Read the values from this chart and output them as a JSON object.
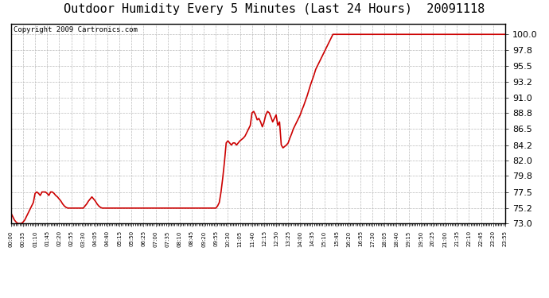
{
  "title": "Outdoor Humidity Every 5 Minutes (Last 24 Hours)  20091118",
  "copyright": "Copyright 2009 Cartronics.com",
  "line_color": "#cc0000",
  "background_color": "#ffffff",
  "grid_color": "#bbbbbb",
  "ylim": [
    73.0,
    101.5
  ],
  "yticks": [
    73.0,
    75.2,
    77.5,
    79.8,
    82.0,
    84.2,
    86.5,
    88.8,
    91.0,
    93.2,
    95.5,
    97.8,
    100.0
  ],
  "humidity_data": [
    74.5,
    74.0,
    73.5,
    73.2,
    73.0,
    73.0,
    73.0,
    73.2,
    73.5,
    74.0,
    74.5,
    75.0,
    75.5,
    76.0,
    77.3,
    77.5,
    77.3,
    77.0,
    77.5,
    77.5,
    77.5,
    77.3,
    77.0,
    77.5,
    77.5,
    77.3,
    77.0,
    76.8,
    76.5,
    76.2,
    75.8,
    75.5,
    75.3,
    75.2,
    75.2,
    75.2,
    75.2,
    75.2,
    75.2,
    75.2,
    75.2,
    75.2,
    75.2,
    75.5,
    75.8,
    76.2,
    76.5,
    76.8,
    76.5,
    76.2,
    75.8,
    75.5,
    75.3,
    75.2,
    75.2,
    75.2,
    75.2,
    75.2,
    75.2,
    75.2,
    75.2,
    75.2,
    75.2,
    75.2,
    75.2,
    75.2,
    75.2,
    75.2,
    75.2,
    75.2,
    75.2,
    75.2,
    75.2,
    75.2,
    75.2,
    75.2,
    75.2,
    75.2,
    75.2,
    75.2,
    75.2,
    75.2,
    75.2,
    75.2,
    75.2,
    75.2,
    75.2,
    75.2,
    75.2,
    75.2,
    75.2,
    75.2,
    75.2,
    75.2,
    75.2,
    75.2,
    75.2,
    75.2,
    75.2,
    75.2,
    75.2,
    75.2,
    75.2,
    75.2,
    75.2,
    75.2,
    75.2,
    75.2,
    75.2,
    75.2,
    75.2,
    75.2,
    75.2,
    75.2,
    75.2,
    75.2,
    75.2,
    75.2,
    75.2,
    75.2,
    75.5,
    76.0,
    77.5,
    79.5,
    81.8,
    84.5,
    84.8,
    84.5,
    84.2,
    84.5,
    84.5,
    84.2,
    84.5,
    84.8,
    85.0,
    85.2,
    85.5,
    86.0,
    86.5,
    87.0,
    88.8,
    89.0,
    88.5,
    87.8,
    88.0,
    87.5,
    86.8,
    87.5,
    88.5,
    89.0,
    88.8,
    88.2,
    87.5,
    88.0,
    88.5,
    87.0,
    87.5,
    84.2,
    83.8,
    84.0,
    84.2,
    84.5,
    85.2,
    85.8,
    86.5,
    87.0,
    87.5,
    88.0,
    88.5,
    89.2,
    89.8,
    90.5,
    91.2,
    92.0,
    92.8,
    93.5,
    94.2,
    95.0,
    95.5,
    96.0,
    96.5,
    97.0,
    97.5,
    98.0,
    98.5,
    99.0,
    99.5,
    100.0,
    100.0,
    100.0,
    100.0,
    100.0,
    100.0,
    100.0,
    100.0,
    100.0,
    100.0,
    100.0,
    100.0,
    100.0,
    100.0,
    100.0,
    100.0,
    100.0,
    100.0,
    100.0,
    100.0,
    100.0,
    100.0,
    100.0,
    100.0,
    100.0,
    100.0,
    100.0,
    100.0,
    100.0,
    100.0,
    100.0,
    100.0,
    100.0,
    100.0,
    100.0,
    100.0,
    100.0,
    100.0,
    100.0,
    100.0,
    100.0,
    100.0,
    100.0,
    100.0,
    100.0,
    100.0,
    100.0,
    100.0,
    100.0,
    100.0,
    100.0,
    100.0,
    100.0,
    100.0,
    100.0,
    100.0,
    100.0,
    100.0,
    100.0,
    100.0,
    100.0,
    100.0,
    100.0,
    100.0,
    100.0,
    100.0,
    100.0,
    100.0,
    100.0,
    100.0,
    100.0,
    100.0,
    100.0,
    100.0,
    100.0,
    100.0,
    100.0,
    100.0,
    100.0,
    100.0,
    100.0,
    100.0,
    100.0,
    100.0,
    100.0,
    100.0,
    100.0,
    100.0,
    100.0,
    100.0,
    100.0,
    100.0,
    100.0,
    100.0,
    100.0,
    100.0,
    100.0,
    100.0,
    100.0,
    100.0,
    100.0
  ],
  "title_fontsize": 11,
  "copyright_fontsize": 6.5,
  "ytick_fontsize": 8,
  "xtick_fontsize": 5
}
